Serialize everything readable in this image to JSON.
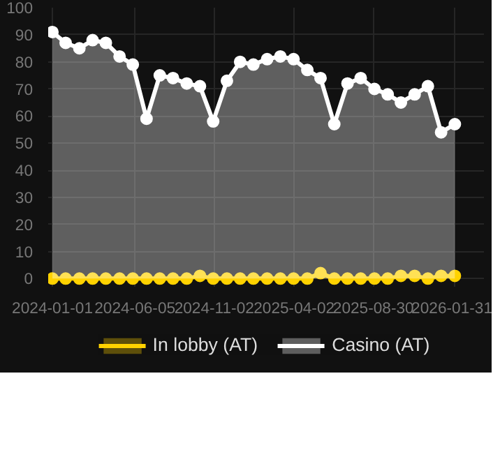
{
  "chart_data": {
    "type": "area",
    "x": [
      "2024-01-01",
      "2024-01-26",
      "2024-02-21",
      "2024-03-17",
      "2024-04-11",
      "2024-05-07",
      "2024-06-01",
      "2024-06-27",
      "2024-07-22",
      "2024-08-16",
      "2024-09-11",
      "2024-10-06",
      "2024-10-31",
      "2024-11-26",
      "2024-12-21",
      "2025-01-15",
      "2025-02-10",
      "2025-03-07",
      "2025-04-01",
      "2025-04-27",
      "2025-05-22",
      "2025-06-17",
      "2025-07-12",
      "2025-08-06",
      "2025-09-01",
      "2025-09-26",
      "2025-10-21",
      "2025-11-16",
      "2025-12-11",
      "2026-01-05",
      "2026-01-31"
    ],
    "series": [
      {
        "name": "In lobby (AT)",
        "color": "#ffd200",
        "values": [
          0,
          0,
          0,
          0,
          0,
          0,
          0,
          0,
          0,
          0,
          0,
          1,
          0,
          0,
          0,
          0,
          0,
          0,
          0,
          0,
          2,
          0,
          0,
          0,
          0,
          0,
          1,
          1,
          0,
          1,
          1
        ]
      },
      {
        "name": "Casino (AT)",
        "color": "#ffffff",
        "values": [
          91,
          87,
          85,
          88,
          87,
          82,
          79,
          59,
          75,
          74,
          72,
          71,
          58,
          73,
          80,
          79,
          81,
          82,
          81,
          77,
          74,
          57,
          72,
          74,
          70,
          68,
          65,
          68,
          71,
          54,
          57
        ]
      }
    ],
    "xlim": [
      "2023-12-24",
      "2026-03-27"
    ],
    "xticks": [
      "2024-01-01",
      "2024-06-05",
      "2024-11-02",
      "2025-04-02",
      "2025-08-30",
      "2026-01-31"
    ],
    "ylim": [
      -3,
      100
    ],
    "yticks": [
      0,
      10,
      20,
      30,
      40,
      50,
      60,
      70,
      80,
      90,
      100
    ],
    "grid": true,
    "legend": "bottom",
    "marker": "circle",
    "line_style": "solid"
  }
}
